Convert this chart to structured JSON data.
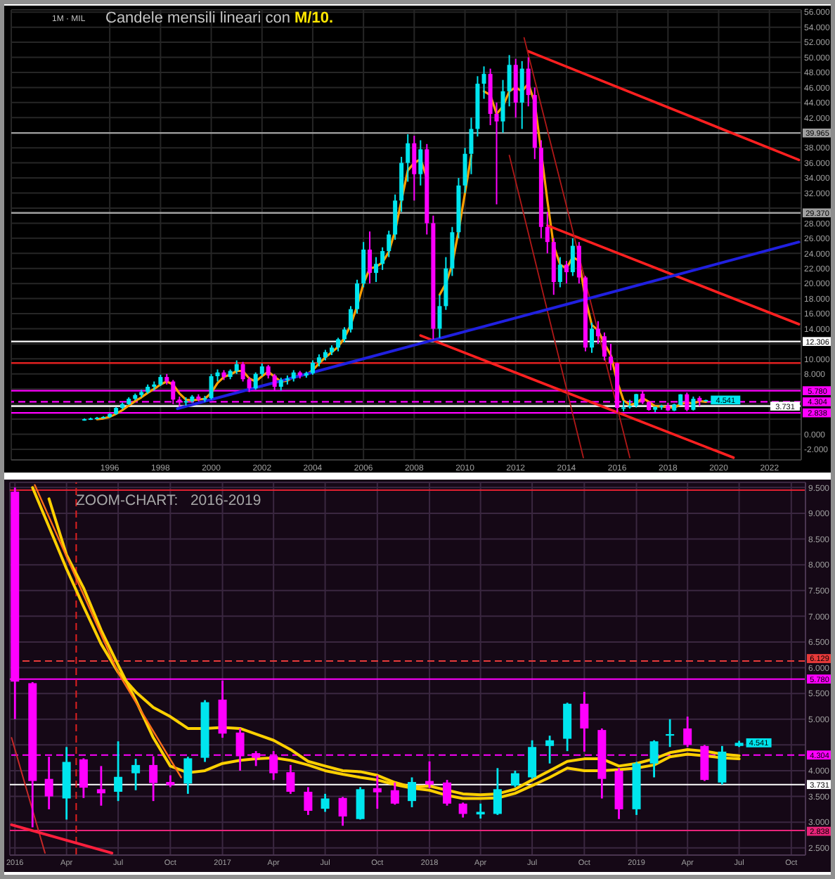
{
  "chart_data": [
    {
      "type": "candlestick",
      "title": "Candele mensili lineari con M/10.",
      "annotations": [
        "1M · MIL",
        {
          "text": "4.541",
          "x": "2019-07",
          "y": 4.541
        }
      ],
      "x": [
        "1995-01",
        "1995-04",
        "1995-07",
        "1995-10",
        "1996-01",
        "1996-04",
        "1996-07",
        "1996-10",
        "1997-01",
        "1997-04",
        "1997-07",
        "1997-10",
        "1998-01",
        "1998-04",
        "1998-07",
        "1998-10",
        "1999-01",
        "1999-04",
        "1999-07",
        "1999-10",
        "2000-01",
        "2000-04",
        "2000-07",
        "2000-10",
        "2001-01",
        "2001-04",
        "2001-07",
        "2001-10",
        "2002-01",
        "2002-04",
        "2002-07",
        "2002-10",
        "2003-01",
        "2003-04",
        "2003-07",
        "2003-10",
        "2004-01",
        "2004-04",
        "2004-07",
        "2004-10",
        "2005-01",
        "2005-04",
        "2005-07",
        "2005-10",
        "2006-01",
        "2006-04",
        "2006-07",
        "2006-10",
        "2007-01",
        "2007-04",
        "2007-07",
        "2007-10",
        "2008-01",
        "2008-04",
        "2008-07",
        "2008-10",
        "2009-01",
        "2009-04",
        "2009-07",
        "2009-10",
        "2010-01",
        "2010-04",
        "2010-07",
        "2010-10",
        "2011-01",
        "2011-04",
        "2011-07",
        "2011-10",
        "2012-01",
        "2012-04",
        "2012-07",
        "2012-10",
        "2013-01",
        "2013-04",
        "2013-07",
        "2013-10",
        "2014-01",
        "2014-04",
        "2014-07",
        "2014-10",
        "2015-01",
        "2015-04",
        "2015-07",
        "2015-10",
        "2016-01",
        "2016-04",
        "2016-07",
        "2016-10",
        "2017-01",
        "2017-04",
        "2017-07",
        "2017-10",
        "2018-01",
        "2018-04",
        "2018-07",
        "2018-10",
        "2019-01",
        "2019-04",
        "2019-07"
      ],
      "ohlc": [
        [
          1.9,
          2.1,
          1.8,
          2.0
        ],
        [
          2.0,
          2.2,
          1.9,
          2.1
        ],
        [
          2.1,
          2.3,
          2.0,
          2.2
        ],
        [
          2.2,
          2.4,
          2.1,
          2.3
        ],
        [
          2.3,
          2.8,
          2.2,
          2.7
        ],
        [
          2.7,
          3.6,
          2.6,
          3.5
        ],
        [
          3.5,
          4.2,
          3.3,
          4.0
        ],
        [
          4.0,
          4.9,
          3.9,
          4.7
        ],
        [
          4.7,
          5.4,
          4.5,
          5.2
        ],
        [
          5.2,
          5.9,
          4.9,
          5.6
        ],
        [
          5.6,
          6.6,
          5.4,
          6.3
        ],
        [
          6.3,
          7.0,
          5.8,
          6.6
        ],
        [
          6.6,
          7.9,
          6.4,
          7.6
        ],
        [
          7.6,
          8.0,
          6.6,
          7.0
        ],
        [
          7.0,
          7.2,
          4.0,
          4.6
        ],
        [
          4.6,
          5.0,
          3.7,
          4.3
        ],
        [
          4.3,
          4.9,
          3.8,
          4.4
        ],
        [
          4.4,
          5.2,
          4.2,
          5.0
        ],
        [
          5.0,
          5.3,
          4.4,
          4.6
        ],
        [
          4.6,
          5.1,
          4.3,
          4.8
        ],
        [
          4.8,
          8.0,
          4.6,
          7.7
        ],
        [
          7.7,
          8.6,
          7.0,
          8.2
        ],
        [
          8.2,
          8.5,
          7.2,
          7.6
        ],
        [
          7.6,
          8.6,
          7.3,
          8.4
        ],
        [
          8.4,
          9.8,
          8.0,
          9.3
        ],
        [
          9.3,
          9.6,
          7.0,
          7.3
        ],
        [
          7.3,
          7.6,
          5.6,
          6.1
        ],
        [
          6.1,
          8.2,
          5.9,
          8.0
        ],
        [
          8.0,
          9.4,
          7.7,
          9.0
        ],
        [
          9.0,
          9.2,
          7.4,
          7.8
        ],
        [
          7.8,
          8.0,
          5.8,
          6.3
        ],
        [
          6.3,
          7.5,
          5.8,
          7.2
        ],
        [
          7.2,
          7.8,
          6.6,
          7.4
        ],
        [
          7.4,
          8.5,
          7.0,
          8.2
        ],
        [
          8.2,
          8.4,
          7.4,
          7.8
        ],
        [
          7.8,
          8.3,
          7.5,
          8.1
        ],
        [
          8.1,
          9.8,
          7.9,
          9.5
        ],
        [
          9.5,
          10.6,
          9.0,
          10.2
        ],
        [
          10.2,
          11.2,
          9.8,
          10.9
        ],
        [
          10.9,
          11.8,
          10.5,
          11.5
        ],
        [
          11.5,
          12.8,
          11.0,
          12.6
        ],
        [
          12.6,
          14.2,
          12.2,
          13.9
        ],
        [
          13.9,
          17.0,
          13.5,
          16.6
        ],
        [
          16.6,
          20.5,
          16.0,
          20.0
        ],
        [
          20.0,
          25.5,
          19.5,
          24.5
        ],
        [
          24.5,
          26.9,
          20.0,
          21.4
        ],
        [
          21.4,
          23.5,
          20.2,
          22.6
        ],
        [
          22.6,
          24.8,
          21.8,
          24.3
        ],
        [
          24.3,
          27.0,
          23.5,
          26.5
        ],
        [
          26.5,
          31.8,
          25.8,
          31.0
        ],
        [
          31.0,
          36.8,
          29.5,
          36.0
        ],
        [
          36.0,
          39.8,
          33.5,
          38.6
        ],
        [
          38.6,
          39.6,
          31.0,
          34.5
        ],
        [
          34.5,
          39.0,
          33.0,
          37.8
        ],
        [
          37.8,
          38.5,
          26.5,
          28.0
        ],
        [
          28.0,
          29.0,
          12.6,
          14.0
        ],
        [
          14.0,
          18.5,
          12.8,
          17.0
        ],
        [
          17.0,
          23.5,
          16.5,
          22.0
        ],
        [
          22.0,
          27.5,
          21.0,
          26.8
        ],
        [
          26.8,
          34.0,
          26.0,
          33.0
        ],
        [
          33.0,
          38.0,
          32.0,
          37.2
        ],
        [
          37.2,
          42.0,
          34.5,
          40.5
        ],
        [
          40.5,
          47.5,
          39.5,
          46.5
        ],
        [
          46.5,
          48.8,
          44.5,
          47.8
        ],
        [
          47.8,
          48.5,
          41.0,
          42.5
        ],
        [
          42.5,
          44.0,
          30.5,
          41.5
        ],
        [
          41.5,
          47.0,
          40.0,
          45.5
        ],
        [
          45.5,
          50.3,
          43.5,
          49.0
        ],
        [
          49.0,
          49.8,
          42.0,
          44.0
        ],
        [
          44.0,
          49.5,
          40.5,
          48.5
        ],
        [
          48.5,
          50.0,
          43.5,
          45.0
        ],
        [
          45.0,
          46.0,
          36.5,
          38.0
        ],
        [
          38.0,
          39.0,
          26.0,
          27.5
        ],
        [
          27.5,
          29.5,
          24.0,
          25.5
        ],
        [
          25.5,
          26.0,
          18.5,
          20.2
        ],
        [
          20.2,
          23.5,
          19.5,
          22.5
        ],
        [
          22.5,
          23.0,
          20.0,
          21.5
        ],
        [
          21.5,
          26.0,
          21.0,
          25.0
        ],
        [
          25.0,
          25.5,
          20.0,
          20.8
        ],
        [
          20.8,
          21.0,
          11.0,
          11.5
        ],
        [
          11.5,
          14.8,
          10.8,
          14.0
        ],
        [
          14.0,
          15.0,
          12.0,
          13.0
        ],
        [
          13.0,
          13.5,
          9.8,
          10.3
        ],
        [
          10.3,
          12.0,
          8.5,
          9.4
        ],
        [
          9.42,
          9.5,
          2.9,
          3.5
        ],
        [
          3.46,
          4.46,
          3.05,
          3.56
        ],
        [
          3.59,
          4.57,
          3.41,
          3.76
        ],
        [
          3.78,
          5.37,
          3.55,
          5.33
        ],
        [
          5.38,
          5.75,
          4.0,
          4.25
        ],
        [
          4.29,
          4.38,
          3.14,
          3.22
        ],
        [
          3.26,
          3.68,
          2.93,
          3.64
        ],
        [
          3.66,
          3.91,
          3.26,
          3.78
        ],
        [
          3.8,
          4.18,
          3.09,
          3.16
        ],
        [
          3.15,
          4.05,
          3.07,
          3.95
        ],
        [
          3.87,
          5.32,
          3.84,
          5.3
        ],
        [
          5.3,
          5.53,
          3.06,
          3.25
        ],
        [
          3.25,
          5.0,
          3.14,
          4.71
        ],
        [
          4.82,
          5.05,
          3.73,
          4.37
        ],
        [
          4.48,
          4.58,
          4.46,
          4.541
        ]
      ],
      "colors": [
        "#00e5ee",
        "#00e5ee",
        "#00e5ee",
        "#00e5ee",
        "#00e5ee",
        "#00e5ee",
        "#00e5ee",
        "#00e5ee",
        "#00e5ee",
        "#00e5ee",
        "#00e5ee",
        "#00e5ee",
        "#00e5ee",
        "#ff00ff",
        "#ff00ff",
        "#ff00ff",
        "#00e5ee",
        "#00e5ee",
        "#ff00ff",
        "#00e5ee",
        "#00e5ee",
        "#00e5ee",
        "#ff00ff",
        "#00e5ee",
        "#00e5ee",
        "#ff00ff",
        "#ff00ff",
        "#00e5ee",
        "#00e5ee",
        "#ff00ff",
        "#ff00ff",
        "#00e5ee",
        "#00e5ee",
        "#00e5ee",
        "#ff00ff",
        "#00e5ee",
        "#00e5ee",
        "#00e5ee",
        "#00e5ee",
        "#00e5ee",
        "#00e5ee",
        "#00e5ee",
        "#00e5ee",
        "#00e5ee",
        "#00e5ee",
        "#ff00ff",
        "#00e5ee",
        "#00e5ee",
        "#00e5ee",
        "#00e5ee",
        "#00e5ee",
        "#00e5ee",
        "#ff00ff",
        "#00e5ee",
        "#ff00ff",
        "#ff00ff",
        "#00e5ee",
        "#00e5ee",
        "#00e5ee",
        "#00e5ee",
        "#00e5ee",
        "#00e5ee",
        "#00e5ee",
        "#00e5ee",
        "#ff00ff",
        "#ff00ff",
        "#00e5ee",
        "#00e5ee",
        "#ff00ff",
        "#00e5ee",
        "#ff00ff",
        "#ff00ff",
        "#ff00ff",
        "#ff00ff",
        "#ff00ff",
        "#00e5ee",
        "#ff00ff",
        "#00e5ee",
        "#ff00ff",
        "#ff00ff",
        "#00e5ee",
        "#ff00ff",
        "#ff00ff",
        "#ff00ff",
        "#ff00ff",
        "#00e5ee",
        "#00e5ee",
        "#00e5ee",
        "#ff00ff",
        "#ff00ff",
        "#00e5ee",
        "#00e5ee",
        "#ff00ff",
        "#00e5ee",
        "#00e5ee",
        "#ff00ff",
        "#00e5ee",
        "#ff00ff",
        "#00e5ee"
      ],
      "series": [
        {
          "type": "line",
          "color": "#ffa000",
          "values": [
            null,
            null,
            2.0,
            2.1,
            2.3,
            2.7,
            3.2,
            3.8,
            4.4,
            4.9,
            5.5,
            6.0,
            6.6,
            7.0,
            6.6,
            5.4,
            4.6,
            4.5,
            4.6,
            4.7,
            5.5,
            6.8,
            7.6,
            7.9,
            8.4,
            8.4,
            7.4,
            7.0,
            7.7,
            8.3,
            7.6,
            7.0,
            7.1,
            7.6,
            7.8,
            7.9,
            8.5,
            9.4,
            10.2,
            10.9,
            11.6,
            12.8,
            14.5,
            17.0,
            20.0,
            22.0,
            22.2,
            22.8,
            24.2,
            27.0,
            31.0,
            35.0,
            36.0,
            36.5,
            34.0,
            null,
            18.5,
            20.0,
            22.5,
            27.0,
            32.0,
            37.0,
            null,
            45.5,
            45.0,
            42.5,
            43.5,
            45.5,
            46.0,
            45.5,
            46.5,
            44.0,
            37.5,
            31.0,
            25.0,
            22.5,
            22.0,
            23.5,
            23.0,
            18.0,
            14.5,
            13.8,
            12.0,
            10.5,
            7.0,
            4.5,
            3.9,
            4.1,
            4.8,
            4.3,
            3.7,
            3.7,
            3.6,
            3.5,
            4.0,
            4.2,
            4.1,
            4.4,
            4.3
          ]
        },
        {
          "type": "line",
          "color": "#ff2020",
          "x": [
            "2012-07",
            "2023-03"
          ],
          "values": [
            50.8,
            36.4
          ]
        },
        {
          "type": "line",
          "color": "#ff2020",
          "x": [
            "2013-04",
            "2023-03"
          ],
          "values": [
            27.7,
            14.6
          ]
        },
        {
          "type": "line",
          "color": "#ff2020",
          "x": [
            "2008-04",
            "2020-08"
          ],
          "values": [
            13.1,
            -3.1
          ]
        },
        {
          "type": "line",
          "color": "#b01818",
          "x": [
            "2012-05",
            "2016-07"
          ],
          "values": [
            52.6,
            -3.1
          ]
        },
        {
          "type": "line",
          "color": "#b01818",
          "x": [
            "2011-10",
            "2014-09"
          ],
          "values": [
            37.0,
            -3.1
          ]
        },
        {
          "type": "line",
          "color": "#2020e0",
          "x": [
            "1998-09",
            "2023-03"
          ],
          "values": [
            3.4,
            25.5
          ]
        }
      ],
      "ref_lines": [
        {
          "axis": "y",
          "value": 39.965,
          "label": "39.965",
          "color": "#a0a0a0"
        },
        {
          "axis": "y",
          "value": 29.37,
          "label": "29.370",
          "color": "#a0a0a0"
        },
        {
          "axis": "y",
          "value": 12.306,
          "label": "12.306",
          "color": "#ffffff"
        },
        {
          "axis": "y",
          "value": 9.45,
          "color": "#e02020"
        },
        {
          "axis": "y",
          "value": 5.78,
          "label": "5.780",
          "color": "#ff00ff"
        },
        {
          "axis": "y",
          "value": 4.304,
          "label": "4.304",
          "color": "#ff00ff",
          "line_style": "dashed"
        },
        {
          "axis": "y",
          "value": 3.731,
          "label": "3.731",
          "color": "#ffffff"
        },
        {
          "axis": "y",
          "value": 2.838,
          "label": "2.838",
          "color": "#ff00ff"
        }
      ],
      "xlim": [
        "1992-02-13",
        "2023-04-04"
      ],
      "ylim": [
        -3.4,
        56.3
      ],
      "xticks": [
        {
          "value": "1996-01-01",
          "label": "1996"
        },
        {
          "value": "1998-01-01",
          "label": "1998"
        },
        {
          "value": "2000-01-01",
          "label": "2000"
        },
        {
          "value": "2002-01-01",
          "label": "2002"
        },
        {
          "value": "2004-01-01",
          "label": "2004"
        },
        {
          "value": "2006-01-01",
          "label": "2006"
        },
        {
          "value": "2008-01-01",
          "label": "2008"
        },
        {
          "value": "2010-01-01",
          "label": "2010"
        },
        {
          "value": "2012-01-01",
          "label": "2012"
        },
        {
          "value": "2014-01-01",
          "label": "2014"
        },
        {
          "value": "2016-01-01",
          "label": "2016"
        },
        {
          "value": "2018-01-01",
          "label": "2018"
        },
        {
          "value": "2020-01-01",
          "label": "2020"
        },
        {
          "value": "2022-01-01",
          "label": "2022"
        }
      ],
      "yticks": [
        {
          "value": -2,
          "label": "-2.000"
        },
        {
          "value": 0,
          "label": "0.000"
        },
        {
          "value": 2,
          "label": null
        },
        {
          "value": 4,
          "label": null
        },
        {
          "value": 6,
          "label": null
        },
        {
          "value": 8,
          "label": "8.000"
        },
        {
          "value": 10,
          "label": "10.000"
        },
        {
          "value": 12,
          "label": null
        },
        {
          "value": 14,
          "label": "14.000"
        },
        {
          "value": 16,
          "label": "16.000"
        },
        {
          "value": 18,
          "label": "18.000"
        },
        {
          "value": 20,
          "label": "20.000"
        },
        {
          "value": 22,
          "label": "22.000"
        },
        {
          "value": 24,
          "label": "24.000"
        },
        {
          "value": 26,
          "label": "26.000"
        },
        {
          "value": 28,
          "label": "28.000"
        },
        {
          "value": 30,
          "label": null
        },
        {
          "value": 32,
          "label": "32.000"
        },
        {
          "value": 34,
          "label": "34.000"
        },
        {
          "value": 36,
          "label": "36.000"
        },
        {
          "value": 38,
          "label": "38.000"
        },
        {
          "value": 40,
          "label": null
        },
        {
          "value": 42,
          "label": "42.000"
        },
        {
          "value": 44,
          "label": "44.000"
        },
        {
          "value": 46,
          "label": "46.000"
        },
        {
          "value": 48,
          "label": "48.000"
        },
        {
          "value": 50,
          "label": "50.000"
        },
        {
          "value": 52,
          "label": "52.000"
        },
        {
          "value": 54,
          "label": "54.000"
        },
        {
          "value": 56,
          "label": "56.000"
        }
      ],
      "grid": true
    },
    {
      "type": "candlestick",
      "title": "ZOOM-CHART:   2016-2019",
      "annotations": [
        {
          "text": "4.541",
          "x": "2019-07",
          "y": 4.541
        }
      ],
      "x": [
        "2016-01",
        "2016-02",
        "2016-03",
        "2016-04",
        "2016-05",
        "2016-06",
        "2016-07",
        "2016-08",
        "2016-09",
        "2016-10",
        "2016-11",
        "2016-12",
        "2017-01",
        "2017-02",
        "2017-03",
        "2017-04",
        "2017-05",
        "2017-06",
        "2017-07",
        "2017-08",
        "2017-09",
        "2017-10",
        "2017-11",
        "2017-12",
        "2018-01",
        "2018-02",
        "2018-03",
        "2018-04",
        "2018-05",
        "2018-06",
        "2018-07",
        "2018-08",
        "2018-09",
        "2018-10",
        "2018-11",
        "2018-12",
        "2019-01",
        "2019-02",
        "2019-03",
        "2019-04",
        "2019-05",
        "2019-06",
        "2019-07"
      ],
      "ohlc": [
        [
          9.42,
          9.5,
          5.0,
          5.73
        ],
        [
          5.7,
          5.72,
          2.9,
          3.8
        ],
        [
          3.84,
          4.27,
          3.25,
          3.5
        ],
        [
          3.46,
          4.46,
          3.05,
          4.17
        ],
        [
          4.22,
          4.24,
          3.47,
          3.67
        ],
        [
          3.64,
          4.09,
          3.32,
          3.56
        ],
        [
          3.59,
          4.57,
          3.41,
          3.88
        ],
        [
          3.95,
          4.23,
          3.62,
          4.11
        ],
        [
          4.11,
          4.28,
          3.41,
          3.76
        ],
        [
          3.78,
          3.91,
          3.68,
          3.72
        ],
        [
          3.75,
          4.27,
          3.55,
          4.24
        ],
        [
          4.25,
          5.37,
          4.17,
          5.33
        ],
        [
          5.38,
          5.75,
          4.64,
          4.72
        ],
        [
          4.74,
          4.82,
          4.0,
          4.28
        ],
        [
          4.34,
          4.38,
          4.09,
          4.25
        ],
        [
          4.29,
          4.38,
          3.82,
          3.95
        ],
        [
          3.97,
          4.11,
          3.55,
          3.59
        ],
        [
          3.59,
          3.68,
          3.14,
          3.22
        ],
        [
          3.26,
          3.55,
          3.2,
          3.46
        ],
        [
          3.47,
          3.49,
          2.93,
          3.11
        ],
        [
          3.06,
          3.68,
          3.05,
          3.64
        ],
        [
          3.66,
          3.91,
          3.26,
          3.58
        ],
        [
          3.62,
          3.77,
          3.34,
          3.36
        ],
        [
          3.41,
          3.87,
          3.29,
          3.78
        ],
        [
          3.8,
          4.18,
          3.66,
          3.73
        ],
        [
          3.77,
          3.82,
          3.32,
          3.36
        ],
        [
          3.36,
          3.38,
          3.09,
          3.16
        ],
        [
          3.15,
          3.36,
          3.07,
          3.2
        ],
        [
          3.16,
          4.05,
          3.14,
          3.64
        ],
        [
          3.71,
          4.0,
          3.68,
          3.95
        ],
        [
          3.87,
          4.59,
          3.84,
          4.46
        ],
        [
          4.48,
          4.68,
          4.14,
          4.59
        ],
        [
          4.62,
          5.32,
          4.38,
          5.3
        ],
        [
          5.3,
          5.53,
          4.37,
          4.82
        ],
        [
          4.79,
          4.82,
          3.46,
          3.84
        ],
        [
          4.0,
          4.05,
          3.06,
          3.25
        ],
        [
          3.25,
          4.17,
          3.14,
          4.14
        ],
        [
          4.14,
          4.59,
          3.87,
          4.57
        ],
        [
          4.68,
          5.0,
          4.46,
          4.71
        ],
        [
          4.82,
          5.05,
          4.46,
          4.5
        ],
        [
          4.48,
          4.5,
          3.8,
          3.82
        ],
        [
          3.77,
          4.48,
          3.73,
          4.37
        ],
        [
          4.48,
          4.58,
          4.46,
          4.541
        ]
      ],
      "colors": [
        "#ff00ff",
        "#ff00ff",
        "#ff00ff",
        "#00e5ee",
        "#ff00ff",
        "#ff00ff",
        "#00e5ee",
        "#00e5ee",
        "#ff00ff",
        "#ff00ff",
        "#00e5ee",
        "#00e5ee",
        "#ff00ff",
        "#ff00ff",
        "#ff00ff",
        "#ff00ff",
        "#ff00ff",
        "#ff00ff",
        "#00e5ee",
        "#ff00ff",
        "#00e5ee",
        "#ff00ff",
        "#ff00ff",
        "#00e5ee",
        "#ff00ff",
        "#ff00ff",
        "#ff00ff",
        "#00e5ee",
        "#00e5ee",
        "#00e5ee",
        "#00e5ee",
        "#00e5ee",
        "#00e5ee",
        "#ff00ff",
        "#ff00ff",
        "#ff00ff",
        "#00e5ee",
        "#00e5ee",
        "#00e5ee",
        "#ff00ff",
        "#ff00ff",
        "#00e5ee",
        "#00e5ee"
      ],
      "series": [
        {
          "type": "line",
          "color": "#ffd000",
          "values": [
            null,
            9.5,
            8.74,
            7.92,
            7.19,
            6.46,
            5.91,
            5.53,
            5.23,
            5.05,
            4.82,
            4.82,
            4.84,
            4.82,
            4.71,
            4.59,
            4.41,
            4.18,
            4.09,
            4.0,
            3.98,
            3.91,
            3.77,
            3.68,
            3.7,
            3.62,
            3.55,
            3.53,
            3.55,
            3.64,
            3.82,
            4.0,
            4.18,
            4.23,
            4.23,
            4.09,
            4.14,
            4.23,
            4.35,
            4.41,
            4.38,
            4.32,
            4.29
          ]
        },
        {
          "type": "line",
          "color": "#ffd000",
          "values": [
            null,
            null,
            9.28,
            8.19,
            7.55,
            6.73,
            6.05,
            5.37,
            4.64,
            4.09,
            3.96,
            4.0,
            4.14,
            4.2,
            4.23,
            4.25,
            4.2,
            4.11,
            4.0,
            3.93,
            3.87,
            3.82,
            3.73,
            3.66,
            3.62,
            3.52,
            3.46,
            3.46,
            3.47,
            3.56,
            3.71,
            3.87,
            4.05,
            4.0,
            4.0,
            4.02,
            4.05,
            4.11,
            4.27,
            4.32,
            4.29,
            4.25,
            4.23
          ]
        },
        {
          "type": "line",
          "color": "#ff6d1a",
          "x": [
            "2016-02-05",
            "2016-07-01",
            "2016-10-20"
          ],
          "values": [
            9.55,
            5.9,
            3.87
          ]
        },
        {
          "type": "line",
          "color": "#c62828",
          "x": [
            "2015-12-26",
            "2016-02-23"
          ],
          "values": [
            4.64,
            2.4
          ]
        },
        {
          "type": "line",
          "color": "#ff1f3d",
          "x": [
            "2015-12-26",
            "2016-06-20"
          ],
          "values": [
            2.95,
            2.4
          ]
        }
      ],
      "ref_lines": [
        {
          "axis": "y",
          "value": 9.45,
          "color": "#e02030"
        },
        {
          "axis": "y",
          "value": 6.129,
          "label": "6.129",
          "color": "#e83a3a",
          "line_style": "dashed"
        },
        {
          "axis": "y",
          "value": 5.78,
          "label": "5.780",
          "color": "#ff00ff"
        },
        {
          "axis": "y",
          "value": 4.304,
          "label": "4.304",
          "color": "#ff00ff",
          "line_style": "dashed"
        },
        {
          "axis": "y",
          "value": 3.731,
          "label": "3.731",
          "color": "#ffffff"
        },
        {
          "axis": "y",
          "value": 2.838,
          "label": "2.838",
          "color": "#e8247a"
        },
        {
          "axis": "x",
          "value": "2016-04-18",
          "color": "#e02020",
          "line_style": "dashed"
        }
      ],
      "xlim": [
        "2015-12-23",
        "2019-10-26"
      ],
      "ylim": [
        2.36,
        9.6
      ],
      "xticks": [
        {
          "value": "2016-01-01",
          "label": "2016"
        },
        {
          "value": "2016-04-01",
          "label": "Apr"
        },
        {
          "value": "2016-07-01",
          "label": "Jul"
        },
        {
          "value": "2016-10-01",
          "label": "Oct"
        },
        {
          "value": "2017-01-01",
          "label": "2017"
        },
        {
          "value": "2017-04-01",
          "label": "Apr"
        },
        {
          "value": "2017-07-01",
          "label": "Jul"
        },
        {
          "value": "2017-10-01",
          "label": "Oct"
        },
        {
          "value": "2018-01-01",
          "label": "2018"
        },
        {
          "value": "2018-04-01",
          "label": "Apr"
        },
        {
          "value": "2018-07-01",
          "label": "Jul"
        },
        {
          "value": "2018-10-01",
          "label": "Oct"
        },
        {
          "value": "2019-01-01",
          "label": "2019"
        },
        {
          "value": "2019-04-01",
          "label": "Apr"
        },
        {
          "value": "2019-07-01",
          "label": "Jul"
        },
        {
          "value": "2019-10-01",
          "label": "Oct"
        }
      ],
      "yticks": [
        {
          "value": 2.5,
          "label": "2.500"
        },
        {
          "value": 3,
          "label": "3.000"
        },
        {
          "value": 3.5,
          "label": "3.500"
        },
        {
          "value": 4,
          "label": "4.000"
        },
        {
          "value": 4.5,
          "label": null
        },
        {
          "value": 5,
          "label": "5.000"
        },
        {
          "value": 5.5,
          "label": "5.500"
        },
        {
          "value": 6,
          "label": "6.000"
        },
        {
          "value": 6.5,
          "label": "6.500"
        },
        {
          "value": 7,
          "label": "7.000"
        },
        {
          "value": 7.5,
          "label": "7.500"
        },
        {
          "value": 8,
          "label": "8.000"
        },
        {
          "value": 8.5,
          "label": "8.500"
        },
        {
          "value": 9,
          "label": "9.000"
        },
        {
          "value": 9.5,
          "label": "9.500"
        }
      ],
      "grid": true
    }
  ]
}
